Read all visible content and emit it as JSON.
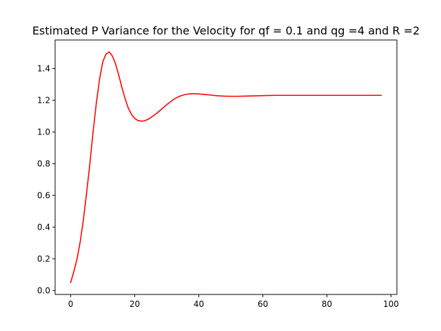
{
  "chart_data": {
    "type": "line",
    "title": "Estimated P Variance for the Velocity for qf = 0.1 and qg =4 and  R =2",
    "xlabel": "",
    "ylabel": "",
    "xlim": [
      -4.85,
      101.85
    ],
    "ylim": [
      -0.025,
      1.58
    ],
    "xticks": [
      0,
      20,
      40,
      60,
      80,
      100
    ],
    "yticks": [
      0.0,
      0.2,
      0.4,
      0.6,
      0.8,
      1.0,
      1.2,
      1.4
    ],
    "xtick_labels": [
      "0",
      "20",
      "40",
      "60",
      "80",
      "100"
    ],
    "ytick_labels": [
      "0.0",
      "0.2",
      "0.4",
      "0.6",
      "0.8",
      "1.0",
      "1.2",
      "1.4"
    ],
    "grid": false,
    "series": [
      {
        "color": "#ff0000",
        "x": [
          0,
          1,
          2,
          3,
          4,
          5,
          6,
          7,
          8,
          9,
          10,
          11,
          12,
          13,
          14,
          15,
          16,
          17,
          18,
          19,
          20,
          21,
          22,
          23,
          24,
          25,
          26,
          27,
          28,
          29,
          30,
          31,
          32,
          33,
          34,
          35,
          36,
          37,
          38,
          39,
          40,
          42,
          44,
          46,
          48,
          50,
          52,
          54,
          56,
          58,
          60,
          62,
          64,
          66,
          68,
          70,
          75,
          80,
          85,
          90,
          97
        ],
        "y": [
          0.05,
          0.12,
          0.2,
          0.31,
          0.45,
          0.62,
          0.8,
          1.0,
          1.18,
          1.33,
          1.44,
          1.49,
          1.505,
          1.48,
          1.43,
          1.36,
          1.28,
          1.21,
          1.15,
          1.11,
          1.085,
          1.072,
          1.068,
          1.07,
          1.078,
          1.09,
          1.105,
          1.12,
          1.137,
          1.155,
          1.172,
          1.188,
          1.203,
          1.215,
          1.225,
          1.232,
          1.237,
          1.24,
          1.241,
          1.241,
          1.24,
          1.236,
          1.232,
          1.228,
          1.226,
          1.225,
          1.225,
          1.226,
          1.227,
          1.228,
          1.229,
          1.23,
          1.231,
          1.231,
          1.231,
          1.231,
          1.231,
          1.231,
          1.231,
          1.231,
          1.231
        ]
      }
    ]
  }
}
